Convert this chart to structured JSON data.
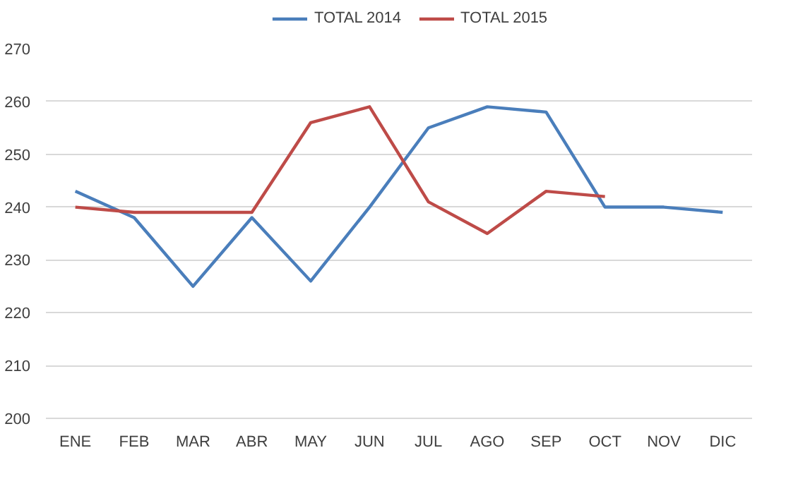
{
  "chart_data": {
    "type": "line",
    "categories": [
      "ENE",
      "FEB",
      "MAR",
      "ABR",
      "MAY",
      "JUN",
      "JUL",
      "AGO",
      "SEP",
      "OCT",
      "NOV",
      "DIC"
    ],
    "series": [
      {
        "name": "TOTAL 2014",
        "color": "#4a7ebb",
        "values": [
          243,
          238,
          225,
          238,
          226,
          240,
          255,
          259,
          258,
          240,
          240,
          239
        ]
      },
      {
        "name": "TOTAL 2015",
        "color": "#be4b48",
        "values": [
          240,
          239,
          239,
          239,
          256,
          259,
          241,
          235,
          243,
          242,
          null,
          null
        ]
      }
    ],
    "ylim": [
      200,
      270
    ],
    "yticks": [
      200,
      210,
      220,
      230,
      240,
      250,
      260,
      270
    ],
    "grid": "y",
    "legend": "top",
    "marker": "none",
    "line_style": "solid"
  }
}
